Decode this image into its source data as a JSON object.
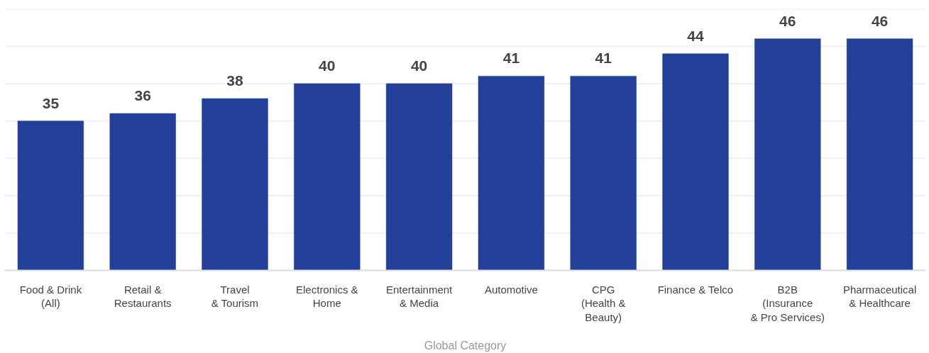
{
  "chart_data": {
    "type": "bar",
    "xlabel": "Global Category",
    "categories": [
      "Food & Drink\n(All)",
      "Retail &\nRestaurants",
      "Travel\n& Tourism",
      "Electronics &\nHome",
      "Entertainment\n& Media",
      "Automotive",
      "CPG\n(Health &\nBeauty)",
      "Finance & Telco",
      "B2B\n(Insurance\n& Pro Services)",
      "Pharmaceutical\n& Healthcare"
    ],
    "values": [
      35,
      36,
      38,
      40,
      40,
      41,
      41,
      44,
      46,
      46
    ],
    "color": "#22409a",
    "data_labels": true,
    "ylim": [
      15,
      50
    ],
    "yticks": [
      {
        "value": 15,
        "label": null
      },
      {
        "value": 20,
        "label": null
      },
      {
        "value": 25,
        "label": null
      },
      {
        "value": 30,
        "label": null
      },
      {
        "value": 35,
        "label": null
      },
      {
        "value": 40,
        "label": null
      },
      {
        "value": 45,
        "label": null
      },
      {
        "value": 50,
        "label": null
      }
    ],
    "tick_labels": "x",
    "grid": "y"
  }
}
